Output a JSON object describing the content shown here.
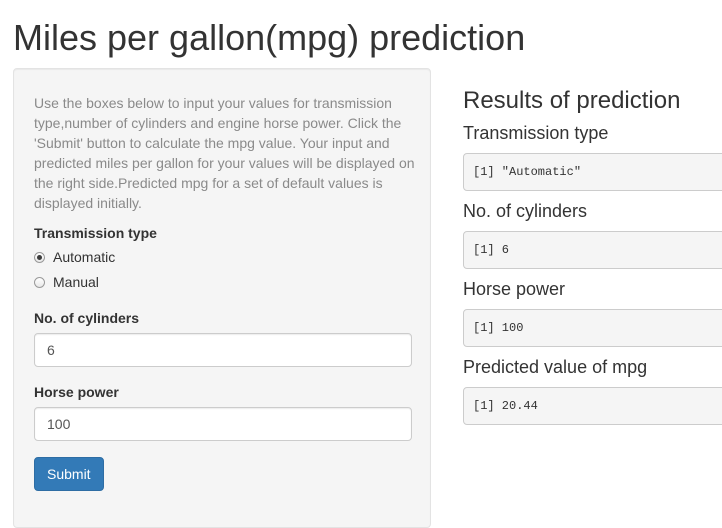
{
  "page": {
    "title": "Miles per gallon(mpg) prediction"
  },
  "sidebar": {
    "help_text": "Use the boxes below to input your values for transmission type,number of cylinders and engine horse power. Click the 'Submit' button to calculate the mpg value. Your input and predicted miles per gallon for your values will be displayed on the right side.Predicted mpg for a set of default values is displayed initially.",
    "transmission": {
      "label": "Transmission type",
      "options": [
        {
          "label": "Automatic",
          "checked": true
        },
        {
          "label": "Manual",
          "checked": false
        }
      ]
    },
    "cylinders": {
      "label": "No. of cylinders",
      "value": "6"
    },
    "horsepower": {
      "label": "Horse power",
      "value": "100"
    },
    "submit_label": "Submit"
  },
  "results": {
    "title": "Results of prediction",
    "items": [
      {
        "label": "Transmission type",
        "output": "[1] \"Automatic\""
      },
      {
        "label": "No. of cylinders",
        "output": "[1] 6"
      },
      {
        "label": "Horse power",
        "output": "[1] 100"
      },
      {
        "label": "Predicted value of mpg",
        "output": "[1] 20.44"
      }
    ]
  },
  "colors": {
    "primary_button": "#337ab7",
    "panel_background": "#f5f5f5"
  }
}
